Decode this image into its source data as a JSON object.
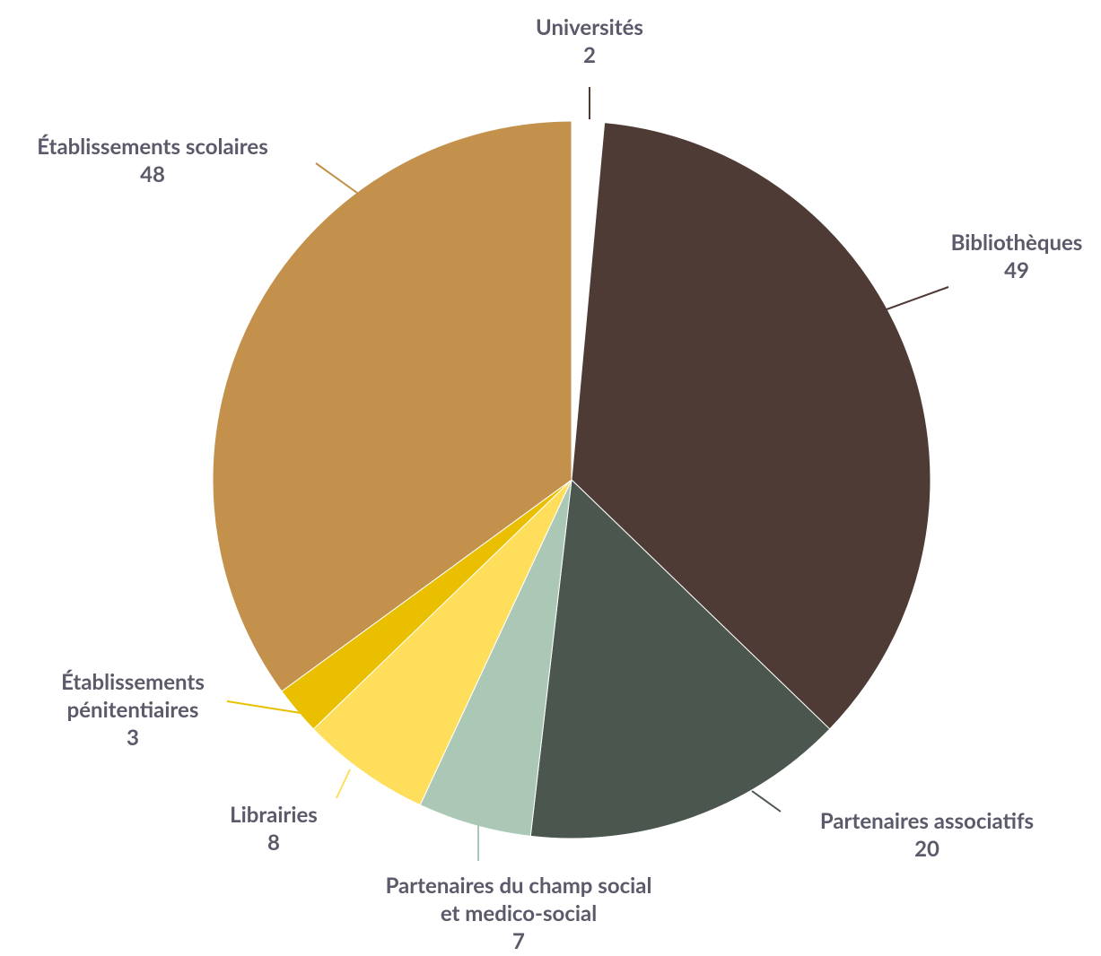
{
  "chart_data": {
    "type": "pie",
    "categories": [
      "Universités",
      "Bibliothèques",
      "Partenaires associatifs",
      "Partenaires du champ social et medico-social",
      "Librairies",
      "Établissements pénitentiaires",
      "Établissements scolaires"
    ],
    "values": [
      2,
      49,
      20,
      7,
      8,
      3,
      48
    ],
    "colors": [
      "#ffffff",
      "#4f3b35",
      "#4b574e",
      "#abc8b6",
      "#fede5a",
      "#e9bf00",
      "#c3914b"
    ]
  }
}
